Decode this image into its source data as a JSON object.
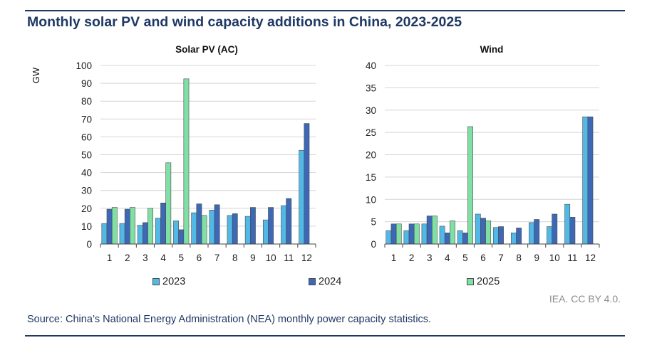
{
  "title": "Monthly solar PV and wind capacity additions in China, 2023-2025",
  "credit": "IEA. CC BY 4.0.",
  "source": "Source: China’s National Energy Administration (NEA) monthly power capacity statistics.",
  "legend": [
    {
      "label": "2023",
      "color": "#52b9e6"
    },
    {
      "label": "2024",
      "color": "#3d68b6"
    },
    {
      "label": "2025",
      "color": "#7fdfa4"
    }
  ],
  "chart_data": [
    {
      "type": "bar",
      "title": "Solar PV (AC)",
      "ylabel": "GW",
      "ylim": [
        0,
        100
      ],
      "yticks": [
        0,
        10,
        20,
        30,
        40,
        50,
        60,
        70,
        80,
        90,
        100
      ],
      "categories": [
        "1",
        "2",
        "3",
        "4",
        "5",
        "6",
        "7",
        "8",
        "9",
        "10",
        "11",
        "12"
      ],
      "series": [
        {
          "name": "2023",
          "color": "#52b9e6",
          "values": [
            11.5,
            11.5,
            10.5,
            14.5,
            13,
            17.5,
            19,
            16,
            15.5,
            13.5,
            21.5,
            52.5
          ]
        },
        {
          "name": "2024",
          "color": "#3d68b6",
          "values": [
            19.5,
            19.5,
            12,
            23,
            8,
            22.5,
            22,
            17,
            20.5,
            20.5,
            25.5,
            67.5
          ]
        },
        {
          "name": "2025",
          "color": "#7fdfa4",
          "values": [
            20.5,
            20.5,
            20,
            45.5,
            92.5,
            16,
            null,
            null,
            null,
            null,
            null,
            null
          ]
        }
      ]
    },
    {
      "type": "bar",
      "title": "Wind",
      "ylabel": "",
      "ylim": [
        0,
        40
      ],
      "yticks": [
        0,
        5,
        10,
        15,
        20,
        25,
        30,
        35,
        40
      ],
      "categories": [
        "1",
        "2",
        "3",
        "4",
        "5",
        "6",
        "7",
        "8",
        "9",
        "10",
        "11",
        "12"
      ],
      "series": [
        {
          "name": "2023",
          "color": "#52b9e6",
          "values": [
            3,
            3,
            4.5,
            4,
            3,
            6.7,
            3.7,
            2.5,
            4.8,
            3.9,
            8.9,
            28.5
          ]
        },
        {
          "name": "2024",
          "color": "#3d68b6",
          "values": [
            4.5,
            4.5,
            6.3,
            2.5,
            2.5,
            5.8,
            3.9,
            3.6,
            5.5,
            6.7,
            6,
            28.5
          ]
        },
        {
          "name": "2025",
          "color": "#7fdfa4",
          "values": [
            4.5,
            4.5,
            6.3,
            5.2,
            26.3,
            5.2,
            null,
            null,
            null,
            null,
            null,
            null
          ]
        }
      ]
    }
  ]
}
